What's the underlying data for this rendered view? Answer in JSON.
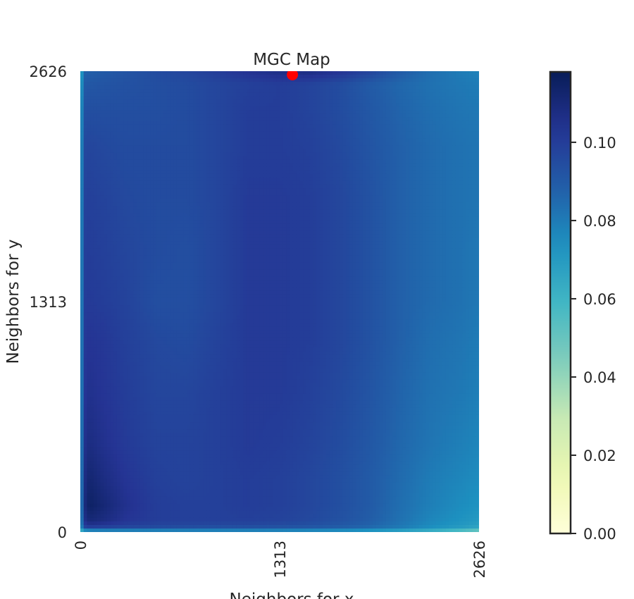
{
  "chart_data": {
    "type": "heatmap",
    "title": "MGC Map",
    "xlabel": "Neighbors for x",
    "ylabel": "Neighbors for y",
    "xlim": [
      0,
      2626
    ],
    "ylim": [
      0,
      2626
    ],
    "x_ticks": [
      "0",
      "1313",
      "2626"
    ],
    "y_ticks": [
      "0",
      "1313",
      "2626"
    ],
    "colormap": "YlGnBu",
    "colorbar": {
      "range": [
        0.0,
        0.118
      ],
      "ticks": [
        "0.00",
        "0.02",
        "0.04",
        "0.06",
        "0.08",
        "0.10"
      ],
      "tick_values": [
        0.0,
        0.02,
        0.04,
        0.06,
        0.08,
        0.1
      ]
    },
    "grid": {
      "x": [
        0,
        20,
        60,
        150,
        300,
        500,
        700,
        900,
        1100,
        1313,
        1500,
        1700,
        1900,
        2100,
        2300,
        2500,
        2626
      ],
      "y": [
        0,
        20,
        60,
        150,
        300,
        500,
        800,
        1100,
        1313,
        1600,
        1900,
        2200,
        2400,
        2550,
        2626
      ],
      "z": [
        [
          0.05,
          0.055,
          0.06,
          0.063,
          0.064,
          0.065,
          0.066,
          0.066,
          0.066,
          0.066,
          0.065,
          0.064,
          0.062,
          0.059,
          0.054,
          0.046,
          0.038
        ],
        [
          0.06,
          0.095,
          0.097,
          0.096,
          0.095,
          0.094,
          0.093,
          0.092,
          0.092,
          0.091,
          0.09,
          0.088,
          0.085,
          0.08,
          0.074,
          0.069,
          0.065
        ],
        [
          0.06,
          0.104,
          0.11,
          0.108,
          0.103,
          0.1,
          0.099,
          0.099,
          0.099,
          0.098,
          0.096,
          0.093,
          0.089,
          0.083,
          0.077,
          0.073,
          0.07
        ],
        [
          0.06,
          0.107,
          0.115,
          0.111,
          0.105,
          0.1,
          0.099,
          0.099,
          0.1,
          0.099,
          0.097,
          0.094,
          0.09,
          0.084,
          0.079,
          0.075,
          0.073
        ],
        [
          0.06,
          0.106,
          0.112,
          0.108,
          0.103,
          0.099,
          0.098,
          0.099,
          0.1,
          0.099,
          0.097,
          0.094,
          0.09,
          0.085,
          0.08,
          0.077,
          0.075
        ],
        [
          0.06,
          0.104,
          0.108,
          0.105,
          0.101,
          0.098,
          0.098,
          0.099,
          0.101,
          0.1,
          0.098,
          0.095,
          0.091,
          0.086,
          0.082,
          0.079,
          0.077
        ],
        [
          0.06,
          0.102,
          0.105,
          0.103,
          0.1,
          0.097,
          0.097,
          0.099,
          0.101,
          0.101,
          0.099,
          0.096,
          0.092,
          0.087,
          0.083,
          0.081,
          0.079
        ],
        [
          0.06,
          0.101,
          0.103,
          0.102,
          0.099,
          0.096,
          0.095,
          0.098,
          0.101,
          0.101,
          0.1,
          0.097,
          0.093,
          0.088,
          0.084,
          0.082,
          0.08
        ],
        [
          0.06,
          0.1,
          0.101,
          0.1,
          0.098,
          0.094,
          0.094,
          0.097,
          0.101,
          0.101,
          0.1,
          0.097,
          0.093,
          0.088,
          0.085,
          0.083,
          0.081
        ],
        [
          0.06,
          0.099,
          0.1,
          0.099,
          0.097,
          0.095,
          0.094,
          0.097,
          0.101,
          0.101,
          0.1,
          0.097,
          0.093,
          0.088,
          0.085,
          0.083,
          0.081
        ],
        [
          0.06,
          0.098,
          0.099,
          0.098,
          0.096,
          0.095,
          0.095,
          0.097,
          0.101,
          0.101,
          0.1,
          0.097,
          0.093,
          0.088,
          0.085,
          0.083,
          0.082
        ],
        [
          0.06,
          0.096,
          0.097,
          0.096,
          0.095,
          0.095,
          0.095,
          0.097,
          0.1,
          0.1,
          0.099,
          0.096,
          0.092,
          0.088,
          0.085,
          0.083,
          0.082
        ],
        [
          0.06,
          0.093,
          0.094,
          0.094,
          0.094,
          0.094,
          0.095,
          0.097,
          0.1,
          0.1,
          0.098,
          0.095,
          0.091,
          0.087,
          0.084,
          0.082,
          0.081
        ],
        [
          0.058,
          0.09,
          0.091,
          0.092,
          0.093,
          0.094,
          0.095,
          0.097,
          0.099,
          0.1,
          0.098,
          0.095,
          0.09,
          0.086,
          0.083,
          0.081,
          0.08
        ],
        [
          0.056,
          0.087,
          0.088,
          0.09,
          0.092,
          0.095,
          0.097,
          0.1,
          0.104,
          0.107,
          0.108,
          0.104,
          0.098,
          0.09,
          0.084,
          0.08,
          0.078
        ]
      ]
    },
    "optimal_point": {
      "x": 1397,
      "y": 2626,
      "color": "#ff0000"
    }
  }
}
